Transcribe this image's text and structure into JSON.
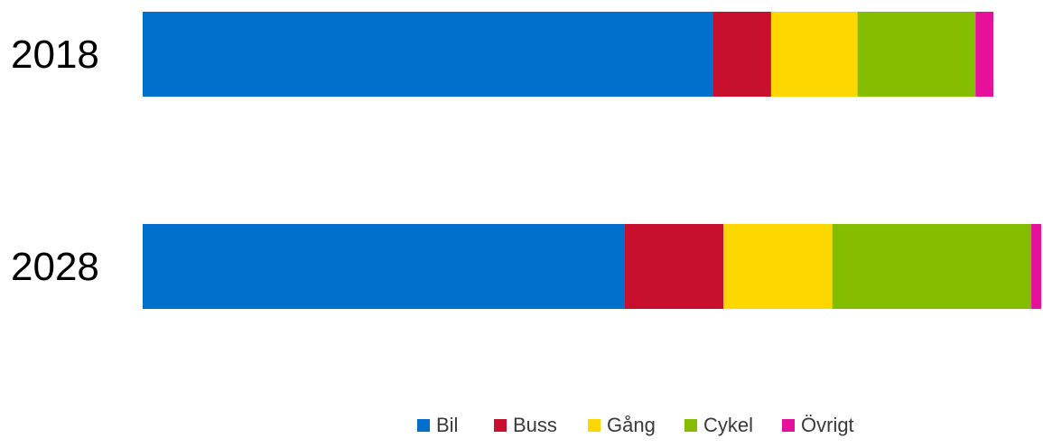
{
  "chart_data": {
    "type": "bar",
    "orientation": "horizontal",
    "stacked": true,
    "categories": [
      "2018",
      "2028"
    ],
    "series": [
      {
        "name": "Bil",
        "color": "#0070CC",
        "values": [
          63.3,
          53.5
        ]
      },
      {
        "name": "Buss",
        "color": "#C8102E",
        "values": [
          6.5,
          11.0
        ]
      },
      {
        "name": "Gång",
        "color": "#FFD700",
        "values": [
          9.6,
          12.1
        ]
      },
      {
        "name": "Cykel",
        "color": "#84BD00",
        "values": [
          13.1,
          22.1
        ]
      },
      {
        "name": "Övrigt",
        "color": "#E6109B",
        "values": [
          2.0,
          1.1
        ]
      }
    ],
    "xlim": [
      0,
      100
    ],
    "grid": false,
    "legend": "bottom"
  }
}
